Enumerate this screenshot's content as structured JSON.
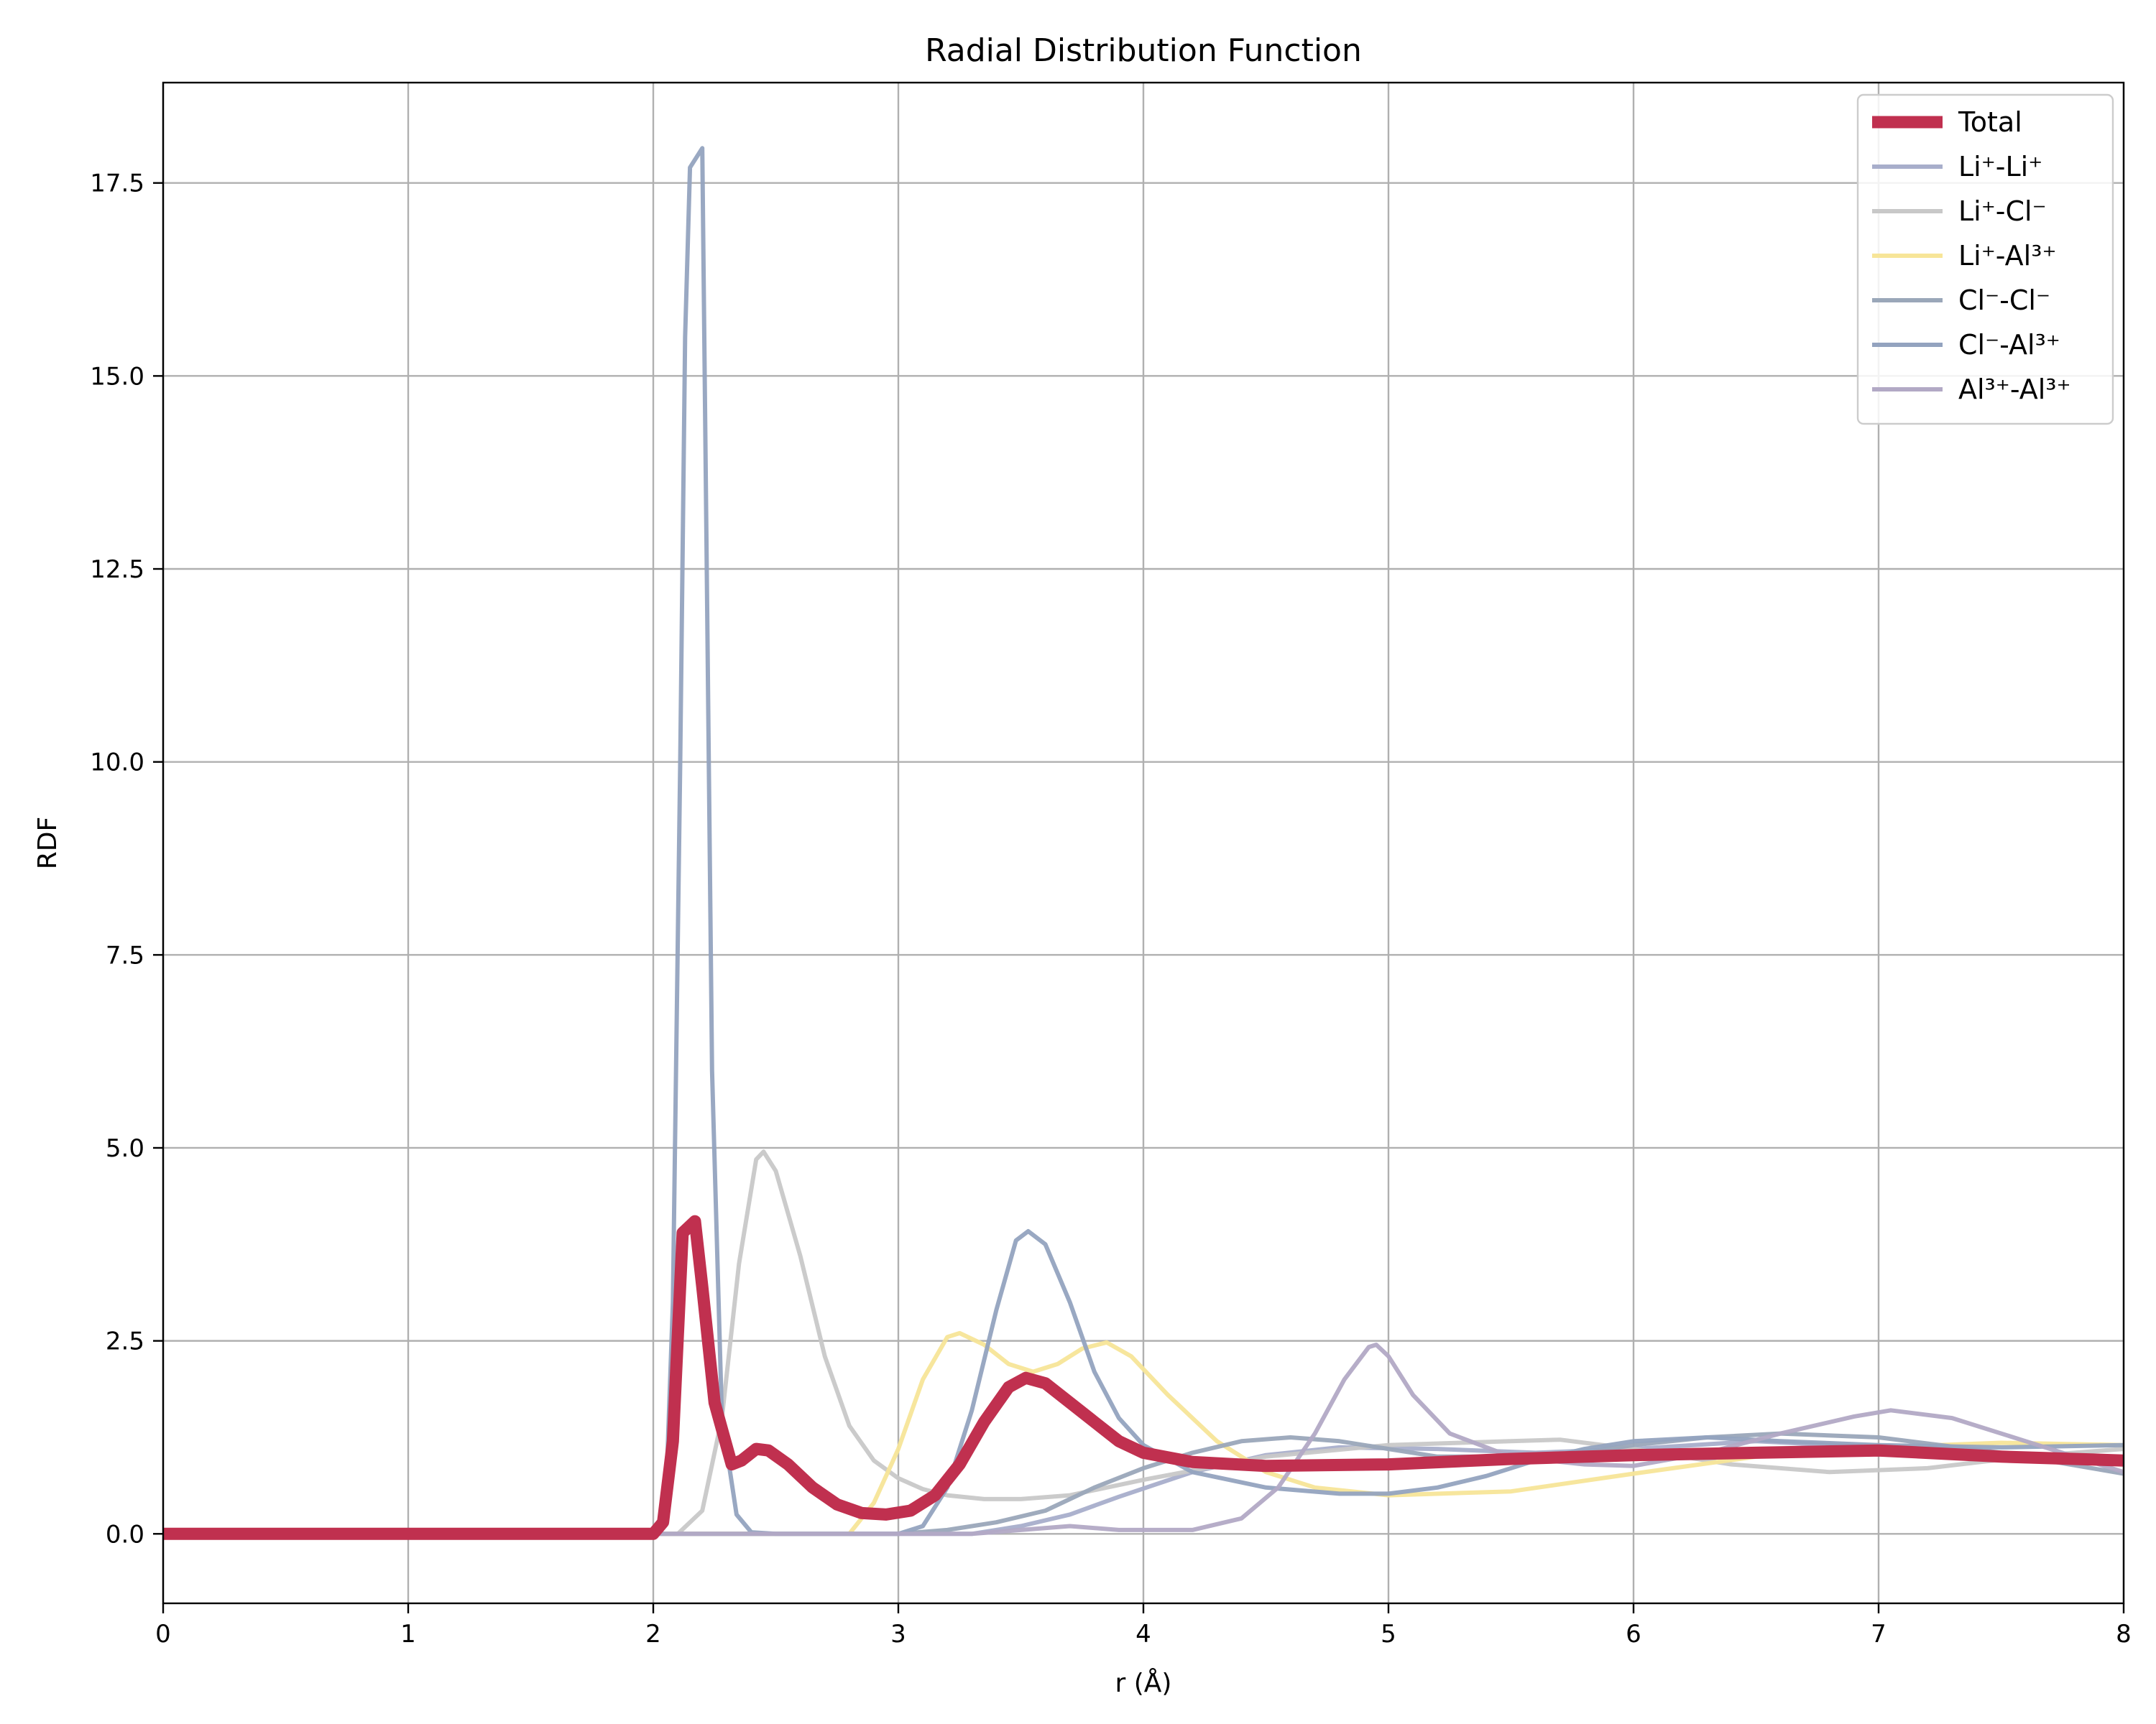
{
  "chart_data": {
    "type": "line",
    "title": "Radial Distribution Function",
    "xlabel": "r (Å)",
    "ylabel": "RDF",
    "xlim": [
      0,
      8
    ],
    "ylim": [
      -0.9,
      18.8
    ],
    "xticks": [
      0,
      1,
      2,
      3,
      4,
      5,
      6,
      7,
      8
    ],
    "xtick_labels": [
      "0",
      "1",
      "2",
      "3",
      "4",
      "5",
      "6",
      "7",
      "8"
    ],
    "yticks": [
      0.0,
      2.5,
      5.0,
      7.5,
      10.0,
      12.5,
      15.0,
      17.5
    ],
    "ytick_labels": [
      "0.0",
      "2.5",
      "5.0",
      "7.5",
      "10.0",
      "12.5",
      "15.0",
      "17.5"
    ],
    "grid": true,
    "legend_position": "top-right",
    "series": [
      {
        "name": "Total",
        "color": "#c0304f",
        "emphasis": true,
        "points": [
          [
            0,
            0
          ],
          [
            1,
            0
          ],
          [
            2,
            0
          ],
          [
            2.04,
            0.15
          ],
          [
            2.08,
            1.2
          ],
          [
            2.12,
            3.9
          ],
          [
            2.17,
            4.05
          ],
          [
            2.2,
            3.2
          ],
          [
            2.25,
            1.7
          ],
          [
            2.32,
            0.9
          ],
          [
            2.36,
            0.95
          ],
          [
            2.42,
            1.1
          ],
          [
            2.47,
            1.08
          ],
          [
            2.55,
            0.9
          ],
          [
            2.65,
            0.6
          ],
          [
            2.75,
            0.38
          ],
          [
            2.85,
            0.27
          ],
          [
            2.95,
            0.25
          ],
          [
            3.05,
            0.3
          ],
          [
            3.15,
            0.5
          ],
          [
            3.25,
            0.9
          ],
          [
            3.35,
            1.45
          ],
          [
            3.45,
            1.9
          ],
          [
            3.52,
            2.02
          ],
          [
            3.6,
            1.95
          ],
          [
            3.7,
            1.7
          ],
          [
            3.8,
            1.45
          ],
          [
            3.9,
            1.2
          ],
          [
            4.0,
            1.05
          ],
          [
            4.2,
            0.93
          ],
          [
            4.5,
            0.88
          ],
          [
            5.0,
            0.9
          ],
          [
            5.5,
            0.97
          ],
          [
            6.0,
            1.02
          ],
          [
            6.5,
            1.05
          ],
          [
            7.0,
            1.08
          ],
          [
            7.5,
            1.0
          ],
          [
            8.0,
            0.95
          ]
        ]
      },
      {
        "name": "Li⁺-Li⁺",
        "color": "#a8aecb",
        "points": [
          [
            0,
            0
          ],
          [
            3.3,
            0
          ],
          [
            3.5,
            0.1
          ],
          [
            3.7,
            0.25
          ],
          [
            3.9,
            0.48
          ],
          [
            4.2,
            0.8
          ],
          [
            4.5,
            1.02
          ],
          [
            4.8,
            1.12
          ],
          [
            5.2,
            1.1
          ],
          [
            5.6,
            1.05
          ],
          [
            6.0,
            1.1
          ],
          [
            6.5,
            1.2
          ],
          [
            7.0,
            1.12
          ],
          [
            7.5,
            1.0
          ],
          [
            8.0,
            0.9
          ]
        ]
      },
      {
        "name": "Li⁺-Cl⁻",
        "color": "#c8c8c8",
        "points": [
          [
            0,
            0
          ],
          [
            2.1,
            0
          ],
          [
            2.2,
            0.3
          ],
          [
            2.28,
            1.5
          ],
          [
            2.35,
            3.5
          ],
          [
            2.42,
            4.85
          ],
          [
            2.45,
            4.95
          ],
          [
            2.5,
            4.7
          ],
          [
            2.6,
            3.6
          ],
          [
            2.7,
            2.3
          ],
          [
            2.8,
            1.4
          ],
          [
            2.9,
            0.95
          ],
          [
            3.0,
            0.72
          ],
          [
            3.1,
            0.58
          ],
          [
            3.2,
            0.5
          ],
          [
            3.35,
            0.45
          ],
          [
            3.5,
            0.45
          ],
          [
            3.7,
            0.5
          ],
          [
            4.0,
            0.7
          ],
          [
            4.5,
            1.0
          ],
          [
            5.0,
            1.15
          ],
          [
            5.5,
            1.2
          ],
          [
            5.7,
            1.22
          ],
          [
            6.0,
            1.1
          ],
          [
            6.4,
            0.9
          ],
          [
            6.8,
            0.8
          ],
          [
            7.2,
            0.85
          ],
          [
            7.6,
            1.0
          ],
          [
            8.0,
            1.1
          ]
        ]
      },
      {
        "name": "Li⁺-Al³⁺",
        "color": "#f7e598",
        "points": [
          [
            0,
            0
          ],
          [
            2.8,
            0
          ],
          [
            2.9,
            0.4
          ],
          [
            3.0,
            1.1
          ],
          [
            3.1,
            2.0
          ],
          [
            3.2,
            2.55
          ],
          [
            3.25,
            2.6
          ],
          [
            3.35,
            2.45
          ],
          [
            3.45,
            2.2
          ],
          [
            3.55,
            2.1
          ],
          [
            3.65,
            2.2
          ],
          [
            3.75,
            2.4
          ],
          [
            3.85,
            2.48
          ],
          [
            3.95,
            2.3
          ],
          [
            4.1,
            1.8
          ],
          [
            4.3,
            1.2
          ],
          [
            4.5,
            0.8
          ],
          [
            4.7,
            0.6
          ],
          [
            5.0,
            0.5
          ],
          [
            5.5,
            0.55
          ],
          [
            6.0,
            0.78
          ],
          [
            6.5,
            1.0
          ],
          [
            7.0,
            1.12
          ],
          [
            7.5,
            1.18
          ],
          [
            8.0,
            1.15
          ]
        ]
      },
      {
        "name": "Cl⁻-Cl⁻",
        "color": "#9aa7b9",
        "points": [
          [
            0,
            0
          ],
          [
            3.0,
            0
          ],
          [
            3.2,
            0.05
          ],
          [
            3.4,
            0.15
          ],
          [
            3.6,
            0.3
          ],
          [
            3.8,
            0.6
          ],
          [
            4.0,
            0.85
          ],
          [
            4.2,
            1.05
          ],
          [
            4.4,
            1.2
          ],
          [
            4.6,
            1.25
          ],
          [
            4.8,
            1.2
          ],
          [
            5.0,
            1.1
          ],
          [
            5.2,
            1.0
          ],
          [
            5.5,
            1.0
          ],
          [
            5.8,
            1.05
          ],
          [
            6.0,
            1.15
          ],
          [
            6.3,
            1.25
          ],
          [
            6.6,
            1.3
          ],
          [
            7.0,
            1.25
          ],
          [
            7.5,
            1.05
          ],
          [
            8.0,
            0.78
          ]
        ]
      },
      {
        "name": "Cl⁻-Al³⁺",
        "color": "#93a3bf",
        "points": [
          [
            0,
            0
          ],
          [
            2.0,
            0
          ],
          [
            2.05,
            0.3
          ],
          [
            2.08,
            3.0
          ],
          [
            2.11,
            10.0
          ],
          [
            2.13,
            15.5
          ],
          [
            2.15,
            17.7
          ],
          [
            2.2,
            17.95
          ],
          [
            2.22,
            12.0
          ],
          [
            2.24,
            6.0
          ],
          [
            2.28,
            1.5
          ],
          [
            2.34,
            0.25
          ],
          [
            2.4,
            0.02
          ],
          [
            2.5,
            0
          ],
          [
            3.0,
            0
          ],
          [
            3.1,
            0.1
          ],
          [
            3.2,
            0.6
          ],
          [
            3.3,
            1.6
          ],
          [
            3.4,
            2.9
          ],
          [
            3.48,
            3.8
          ],
          [
            3.53,
            3.92
          ],
          [
            3.6,
            3.75
          ],
          [
            3.7,
            3.0
          ],
          [
            3.8,
            2.1
          ],
          [
            3.9,
            1.5
          ],
          [
            4.0,
            1.15
          ],
          [
            4.2,
            0.8
          ],
          [
            4.5,
            0.6
          ],
          [
            4.8,
            0.52
          ],
          [
            5.0,
            0.52
          ],
          [
            5.2,
            0.6
          ],
          [
            5.4,
            0.75
          ],
          [
            5.6,
            0.95
          ],
          [
            5.8,
            1.1
          ],
          [
            6.0,
            1.2
          ],
          [
            6.3,
            1.25
          ],
          [
            6.6,
            1.2
          ],
          [
            7.0,
            1.15
          ],
          [
            7.5,
            1.12
          ],
          [
            8.0,
            1.15
          ]
        ]
      },
      {
        "name": "Al³⁺-Al³⁺",
        "color": "#b2a9c5",
        "points": [
          [
            0,
            0
          ],
          [
            3.3,
            0
          ],
          [
            3.5,
            0.05
          ],
          [
            3.7,
            0.1
          ],
          [
            3.9,
            0.05
          ],
          [
            4.2,
            0.05
          ],
          [
            4.4,
            0.2
          ],
          [
            4.55,
            0.6
          ],
          [
            4.7,
            1.3
          ],
          [
            4.82,
            2.0
          ],
          [
            4.92,
            2.42
          ],
          [
            4.95,
            2.45
          ],
          [
            5.0,
            2.3
          ],
          [
            5.1,
            1.8
          ],
          [
            5.25,
            1.3
          ],
          [
            5.5,
            1.0
          ],
          [
            5.8,
            0.9
          ],
          [
            6.0,
            0.88
          ],
          [
            6.3,
            1.05
          ],
          [
            6.6,
            1.3
          ],
          [
            6.9,
            1.52
          ],
          [
            7.05,
            1.6
          ],
          [
            7.3,
            1.5
          ],
          [
            7.6,
            1.2
          ],
          [
            8.0,
            0.8
          ]
        ]
      }
    ]
  }
}
